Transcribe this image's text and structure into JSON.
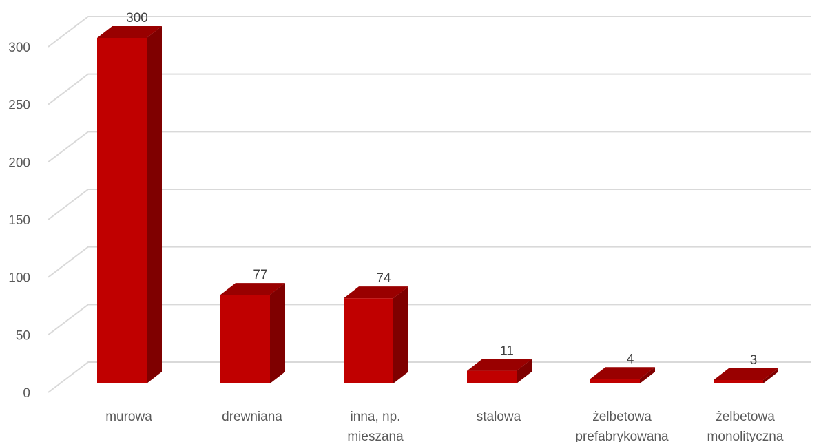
{
  "chart_data": {
    "type": "bar",
    "style": "3d-column",
    "title": "",
    "xlabel": "",
    "ylabel": "",
    "categories": [
      "murowa",
      "drewniana",
      "inna, np. mieszana",
      "stalowa",
      "żelbetowa prefabrykowana",
      "żelbetowa monolityczna"
    ],
    "category_lines": [
      [
        "murowa"
      ],
      [
        "drewniana"
      ],
      [
        "inna, np.",
        "mieszana"
      ],
      [
        "stalowa"
      ],
      [
        "żelbetowa",
        "prefabrykowana"
      ],
      [
        "żelbetowa",
        "monolityczna"
      ]
    ],
    "values": [
      300,
      77,
      74,
      11,
      4,
      3
    ],
    "data_labels": [
      "300",
      "77",
      "74",
      "11",
      "4",
      "3"
    ],
    "ylim": [
      0,
      300
    ],
    "yticks": [
      0,
      50,
      100,
      150,
      200,
      250,
      300
    ],
    "grid": true,
    "legend": "none",
    "colors": {
      "front": "#c00000",
      "side": "#7f0000",
      "top": "#990000",
      "grid": "#d9d9d9",
      "text": "#595959"
    }
  }
}
